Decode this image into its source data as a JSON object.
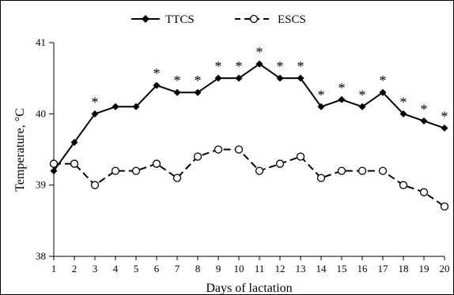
{
  "chart_data": {
    "type": "line",
    "title": "",
    "xlabel": "Days of lactation",
    "ylabel": "Temperature, °C",
    "ylim": [
      38,
      41
    ],
    "yticks": [
      "38",
      "39",
      "40",
      "41"
    ],
    "x": [
      1,
      2,
      3,
      4,
      5,
      6,
      7,
      8,
      9,
      10,
      11,
      12,
      13,
      14,
      15,
      16,
      17,
      18,
      19,
      20
    ],
    "xtick_labels": [
      "1",
      "2",
      "3",
      "4",
      "5",
      "6",
      "7",
      "8",
      "9",
      "10",
      "11",
      "12",
      "13",
      "14",
      "15",
      "16",
      "17",
      "18",
      "19",
      "20"
    ],
    "legend_position": "top-center",
    "series": [
      {
        "name": "TTCS",
        "style": "solid",
        "marker": "filled-diamond",
        "color": "#000000",
        "values": [
          39.2,
          39.6,
          40.0,
          40.1,
          40.1,
          40.4,
          40.3,
          40.3,
          40.5,
          40.5,
          40.7,
          40.5,
          40.5,
          40.1,
          40.2,
          40.1,
          40.3,
          40.0,
          39.9,
          39.8
        ]
      },
      {
        "name": "ESCS",
        "style": "dashed",
        "marker": "open-circle",
        "color": "#000000",
        "values": [
          39.3,
          39.3,
          39.0,
          39.2,
          39.2,
          39.3,
          39.1,
          39.4,
          39.5,
          39.5,
          39.2,
          39.3,
          39.4,
          39.1,
          39.2,
          39.2,
          39.2,
          39.0,
          38.9,
          38.7
        ]
      }
    ],
    "significance_marker": "*",
    "significant_days": [
      3,
      6,
      7,
      8,
      9,
      10,
      11,
      12,
      13,
      14,
      15,
      16,
      17,
      18,
      19,
      20
    ]
  }
}
